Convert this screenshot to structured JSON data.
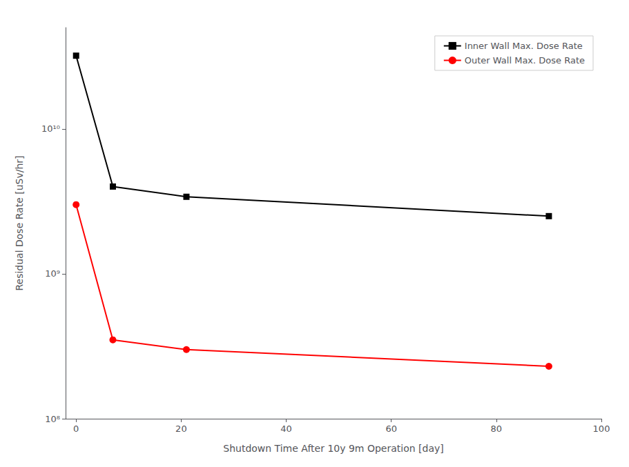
{
  "chart_data": {
    "type": "line",
    "xlabel": "Shutdown Time After 10y 9m Operation [day]",
    "ylabel": "Residual Dose Rate [uSv/hr]",
    "x": [
      0,
      7,
      21,
      90
    ],
    "series": [
      {
        "name": "Inner Wall Max. Dose Rate",
        "color": "#000000",
        "marker": "square",
        "values": [
          32000000000.0,
          4000000000.0,
          3400000000.0,
          2500000000.0
        ]
      },
      {
        "name": "Outer Wall Max. Dose Rate",
        "color": "#ff0000",
        "marker": "circle",
        "values": [
          3000000000.0,
          350000000.0,
          300000000.0,
          230000000.0
        ]
      }
    ],
    "xlim": [
      -2,
      100
    ],
    "xticks": [
      0,
      20,
      40,
      60,
      80,
      100
    ],
    "ylim": [
      100000000.0,
      50000000000.0
    ],
    "yticks": [
      {
        "value": 100000000.0,
        "label": "10⁸"
      },
      {
        "value": 1000000000.0,
        "label": "10⁹"
      },
      {
        "value": 10000000000.0,
        "label": "10¹⁰"
      }
    ],
    "log": "y",
    "grid": false,
    "legend": "upper right"
  }
}
